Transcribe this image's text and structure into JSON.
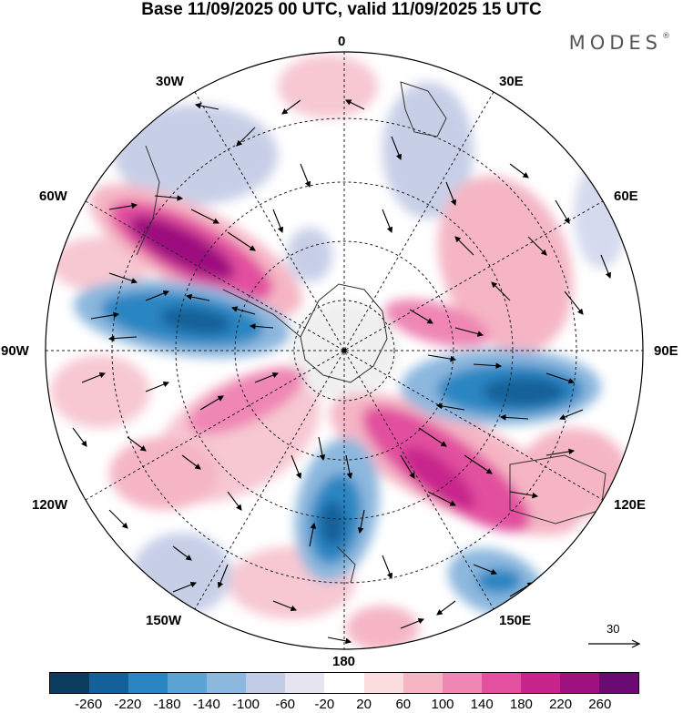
{
  "header": {
    "title": "Base 11/09/2025 00 UTC, valid 11/09/2025 15 UTC",
    "brand": "MODES",
    "brand_mark": "®"
  },
  "map": {
    "projection": "south-polar-stereographic",
    "longitude_labels": {
      "top": "0",
      "top_right": "30E",
      "right_upper": "60E",
      "right": "90E",
      "right_lower": "120E",
      "bottom_right": "150E",
      "bottom": "180",
      "bottom_left": "150W",
      "left_lower": "120W",
      "left": "90W",
      "left_upper": "60W",
      "top_left": "30W"
    },
    "reference_vector": {
      "value": "30"
    }
  },
  "colorbar": {
    "colors": [
      "#0b3c5d",
      "#14609a",
      "#2a86c2",
      "#5aa3d4",
      "#8cb7de",
      "#c2cbe6",
      "#e6e4f1",
      "#ffffff",
      "#fbdde0",
      "#f5b5c4",
      "#ef86b4",
      "#e2509f",
      "#c8258c",
      "#9e117f",
      "#6b0a73"
    ],
    "tick_labels": [
      "-260",
      "-220",
      "-180",
      "-140",
      "-100",
      "-60",
      "-20",
      "20",
      "60",
      "100",
      "140",
      "180",
      "220",
      "260"
    ]
  }
}
